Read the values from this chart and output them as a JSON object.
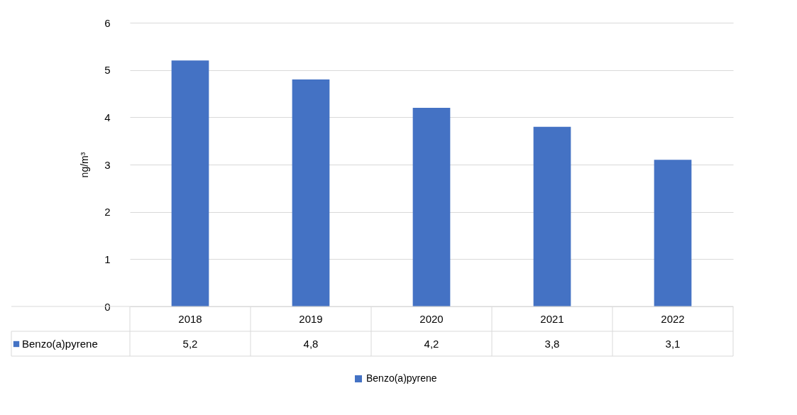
{
  "chart_data": {
    "type": "bar",
    "categories": [
      "2018",
      "2019",
      "2020",
      "2021",
      "2022"
    ],
    "series": [
      {
        "name": "Benzo(a)pyrene",
        "color": "#4472c4",
        "values": [
          5.2,
          4.8,
          4.2,
          3.8,
          3.1
        ],
        "value_labels": [
          "5,2",
          "4,8",
          "4,2",
          "3,8",
          "3,1"
        ]
      }
    ],
    "ylabel": "ng/m³",
    "ylim": [
      0,
      6
    ],
    "yticks": [
      0,
      1,
      2,
      3,
      4,
      5,
      6
    ],
    "grid": "y",
    "legend": "bottom"
  }
}
